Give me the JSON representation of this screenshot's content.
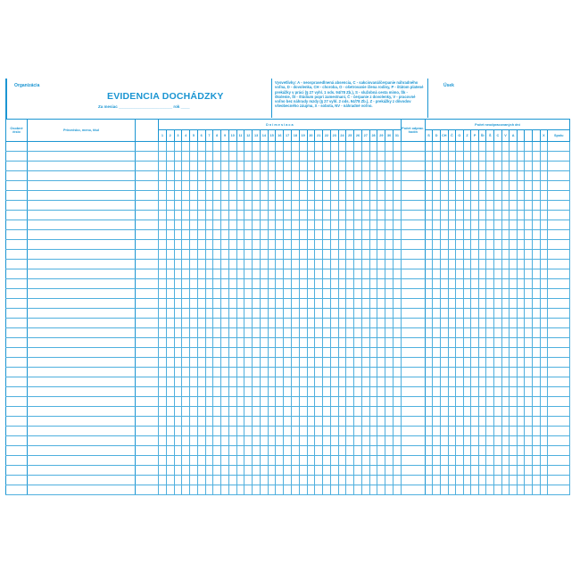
{
  "header": {
    "organization_label": "Organizácia",
    "title": "EVIDENCIA DOCHÁDZKY",
    "month_line": "Za mesiac ________________________ rok ____",
    "legend": "Vysvetlivky: A - neospravedlnená absencia, C - sakciovaná/čerpanie náhradného voľna, D - dovolenka, CH - choroba, O - ošetrovanie člena rodiny, P - štátom platené prekážky v práci (§ 27 vyhl. 1 ods. 94/78 Zb.), S - služobná cesta mimo, Šk - školenie, Št - štúdium popri zamestnaní, Č - čerpanie z dovolenky, V - pracovné voľno bez náhrady mzdy (§ 27 vyhl. 2 ods. 94/78 Zb.), Z - prekážky z dôvodov všeobecného záujmu, X - sobota, NV - náhradné voľno.",
    "section_label": "Úsek"
  },
  "table": {
    "col_id": "Osobné číslo",
    "col_name": "Priezvisko, meno, titul",
    "days_header": "D n i   m e s i a c a",
    "days": [
      "1",
      "2",
      "3",
      "4",
      "5",
      "6",
      "7",
      "8",
      "9",
      "10",
      "11",
      "12",
      "13",
      "14",
      "15",
      "16",
      "17",
      "18",
      "19",
      "20",
      "21",
      "22",
      "23",
      "24",
      "25",
      "26",
      "27",
      "28",
      "29",
      "30",
      "31"
    ],
    "col_hours": "Počet odprac. hodín",
    "absence_header": "Počet neodpracovaných dní",
    "absence_codes": [
      "S",
      "D",
      "CH",
      "Č",
      "O",
      "Z",
      "P",
      "Št",
      "Š",
      "C",
      "V",
      "A",
      "",
      "",
      "",
      "X",
      "Spolu"
    ],
    "row_count": 36
  }
}
